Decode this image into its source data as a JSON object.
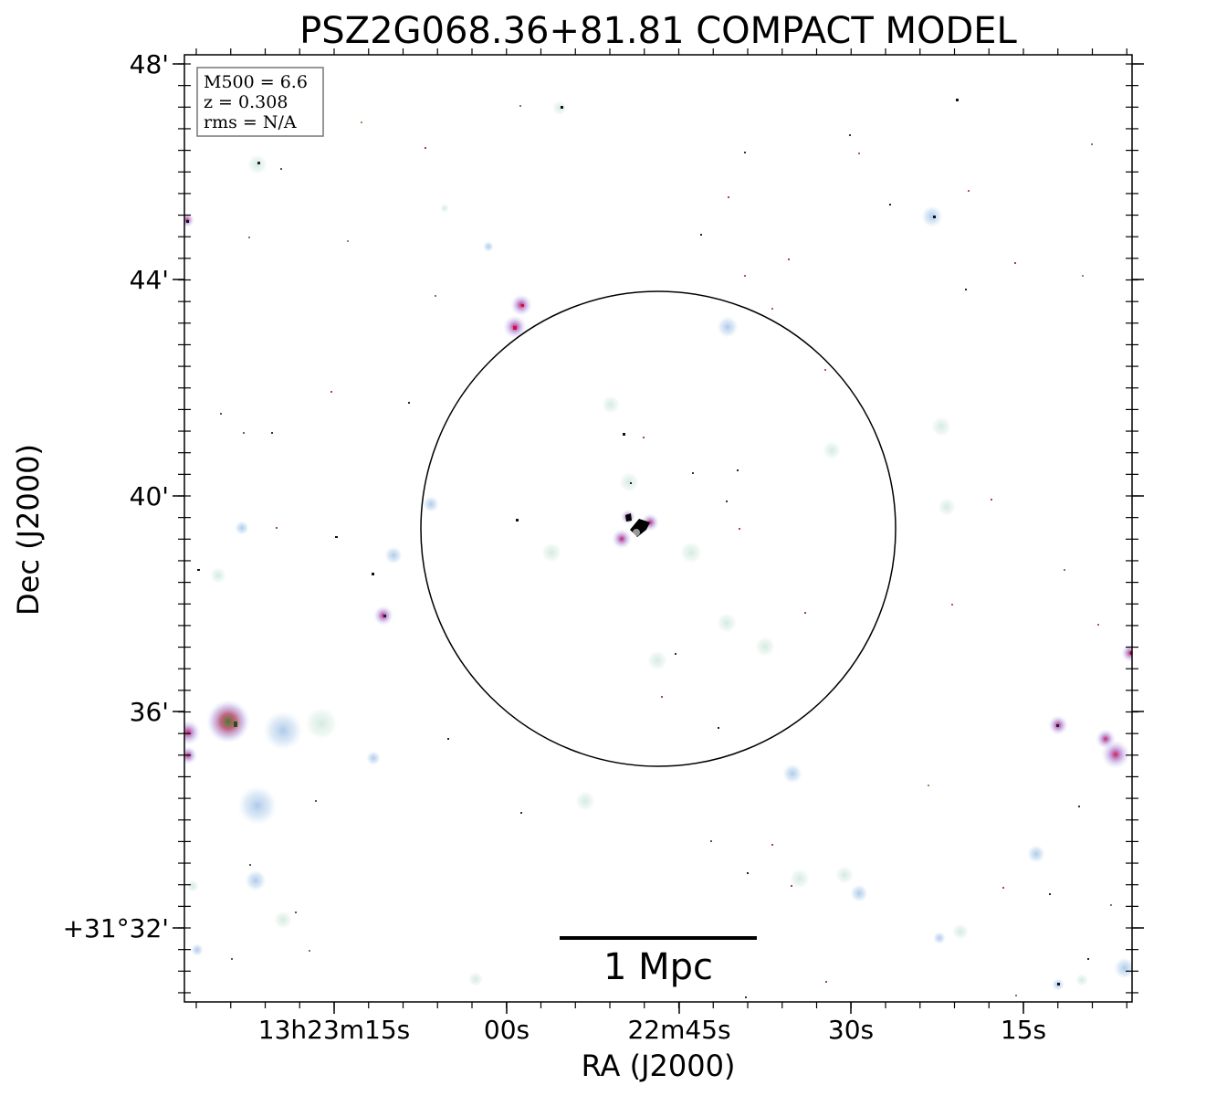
{
  "figure": {
    "title": "PSZ2G068.36+81.81 COMPACT MODEL",
    "xlabel": "RA (J2000)",
    "ylabel": "Dec (J2000)",
    "ra_ticks": [
      "13h23m15s",
      "00s",
      "22m45s",
      "30s",
      "15s"
    ],
    "dec_ticks": [
      "48'",
      "44'",
      "40'",
      "36'",
      "+31°32'"
    ],
    "info_box": {
      "line1": "M500 = 6.6",
      "line2": "z = 0.308",
      "line3": "rms = N/A"
    },
    "scale_bar": {
      "label": "1 Mpc"
    },
    "sources": [
      {
        "ra": "13h23m00s",
        "dec": "+31°43'",
        "color": "#cc3355"
      },
      {
        "ra": "13h22m45s",
        "dec": "+31°39'",
        "color": "#000000"
      },
      {
        "ra": "13h23m25s",
        "dec": "+31°36'",
        "color": "#557733"
      }
    ]
  }
}
